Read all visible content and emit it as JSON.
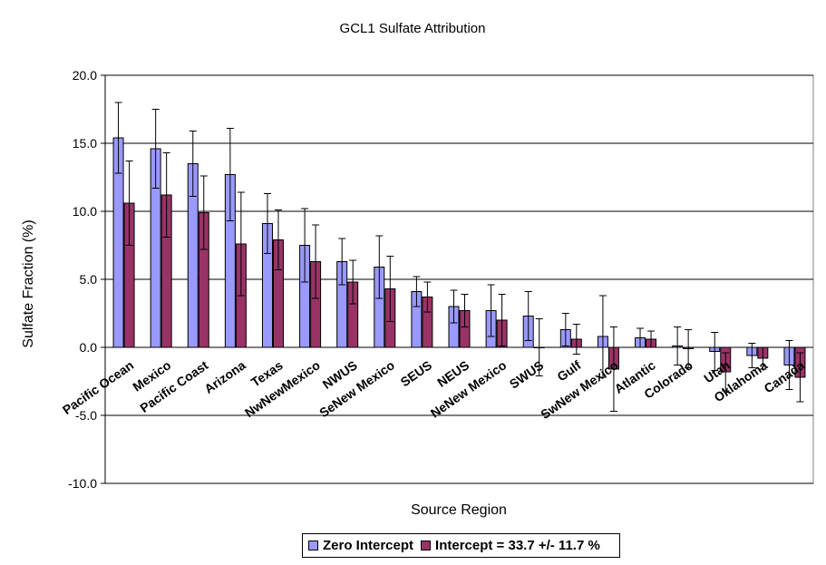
{
  "chart_data": {
    "type": "bar",
    "title": "GCL1 Sulfate Attribution",
    "xlabel": "Source Region",
    "ylabel": "Sulfate Fraction (%)",
    "ylim": [
      -10,
      20
    ],
    "yticks": [
      "20.0",
      "15.0",
      "10.0",
      "5.0",
      "0.0",
      "-5.0",
      "-10.0"
    ],
    "grid": true,
    "legend_position": "bottom",
    "categories": [
      "Pacific Ocean",
      "Mexico",
      "Pacific Coast",
      "Arizona",
      "Texas",
      "NwNewMexico",
      "NWUS",
      "SeNew Mexico",
      "SEUS",
      "NEUS",
      "NeNew Mexico",
      "SWUS",
      "Gulf",
      "SwNew Mexico",
      "Atlantic",
      "Colorado",
      "Utah",
      "Oklahoma",
      "Canada"
    ],
    "series": [
      {
        "name": "Zero Intercept",
        "color": "#9999ff",
        "values": [
          15.4,
          14.6,
          13.5,
          12.7,
          9.1,
          7.5,
          6.3,
          5.9,
          4.1,
          3.0,
          2.7,
          2.3,
          1.3,
          0.8,
          0.7,
          0.1,
          -0.3,
          -0.6,
          -1.3
        ],
        "error": [
          2.6,
          2.9,
          2.4,
          3.4,
          2.2,
          2.7,
          1.7,
          2.3,
          1.1,
          1.2,
          1.9,
          1.8,
          1.2,
          3.0,
          0.7,
          1.4,
          1.4,
          0.9,
          1.8
        ]
      },
      {
        "name": "Intercept = 33.7 +/- 11.7 %",
        "color": "#993366",
        "values": [
          10.6,
          11.2,
          9.9,
          7.6,
          7.9,
          6.3,
          4.8,
          4.3,
          3.7,
          2.7,
          2.0,
          0.0,
          0.6,
          -1.6,
          0.6,
          -0.1,
          -1.8,
          -0.8,
          -2.2
        ],
        "error": [
          3.1,
          3.1,
          2.7,
          3.8,
          2.2,
          2.7,
          1.6,
          2.4,
          1.1,
          1.2,
          1.9,
          2.1,
          1.1,
          3.1,
          0.6,
          1.4,
          1.4,
          0.8,
          1.8
        ]
      }
    ]
  }
}
